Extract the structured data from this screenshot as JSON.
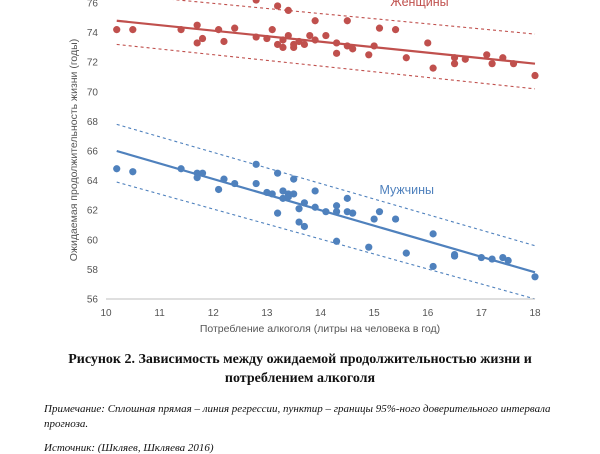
{
  "chart_data": {
    "type": "scatter",
    "title": "",
    "xlabel": "Потребление алкоголя (литры на человека в год)",
    "ylabel": "Ожидаемая продолжительность жизни (годы)",
    "xlim": [
      10,
      18
    ],
    "ylim": [
      56,
      76
    ],
    "xticks": [
      "10",
      "11",
      "12",
      "13",
      "14",
      "15",
      "16",
      "17",
      "18"
    ],
    "yticks": [
      "56",
      "58",
      "60",
      "62",
      "64",
      "66",
      "68",
      "70",
      "72",
      "74",
      "76"
    ],
    "grid": false,
    "series": [
      {
        "name": "Женщины",
        "color": "#c0504d",
        "points": [
          [
            10.2,
            74.2
          ],
          [
            10.5,
            74.2
          ],
          [
            11.4,
            74.2
          ],
          [
            11.7,
            74.5
          ],
          [
            11.7,
            73.3
          ],
          [
            11.8,
            73.6
          ],
          [
            12.1,
            74.2
          ],
          [
            12.2,
            73.4
          ],
          [
            12.4,
            74.3
          ],
          [
            12.8,
            73.7
          ],
          [
            12.8,
            76.2
          ],
          [
            13.0,
            73.6
          ],
          [
            13.1,
            74.2
          ],
          [
            13.2,
            75.8
          ],
          [
            13.2,
            73.2
          ],
          [
            13.3,
            73.5
          ],
          [
            13.3,
            73.0
          ],
          [
            13.4,
            75.5
          ],
          [
            13.4,
            73.8
          ],
          [
            13.5,
            73.2
          ],
          [
            13.5,
            73.0
          ],
          [
            13.6,
            73.4
          ],
          [
            13.7,
            73.2
          ],
          [
            13.8,
            73.8
          ],
          [
            13.9,
            74.8
          ],
          [
            13.9,
            73.5
          ],
          [
            14.1,
            73.8
          ],
          [
            14.3,
            73.3
          ],
          [
            14.3,
            72.6
          ],
          [
            14.5,
            74.8
          ],
          [
            14.5,
            73.1
          ],
          [
            14.6,
            72.9
          ],
          [
            14.9,
            72.5
          ],
          [
            15.0,
            73.1
          ],
          [
            15.1,
            74.3
          ],
          [
            15.4,
            74.2
          ],
          [
            15.6,
            72.3
          ],
          [
            16.0,
            73.3
          ],
          [
            16.1,
            71.6
          ],
          [
            16.5,
            72.3
          ],
          [
            16.5,
            71.9
          ],
          [
            16.7,
            72.2
          ],
          [
            17.1,
            72.5
          ],
          [
            17.2,
            71.9
          ],
          [
            17.4,
            72.3
          ],
          [
            17.6,
            71.9
          ],
          [
            18.0,
            71.1
          ]
        ],
        "fit": [
          [
            10.2,
            74.8
          ],
          [
            18.0,
            71.9
          ]
        ],
        "band_upper": [
          [
            10.2,
            76.6
          ],
          [
            18.0,
            73.9
          ]
        ],
        "band_lower": [
          [
            10.2,
            73.2
          ],
          [
            18.0,
            70.2
          ]
        ],
        "label_pos": [
          15.3,
          75.8
        ]
      },
      {
        "name": "Мужчины",
        "color": "#4f81bd",
        "points": [
          [
            10.2,
            64.8
          ],
          [
            10.5,
            64.6
          ],
          [
            11.4,
            64.8
          ],
          [
            11.7,
            64.5
          ],
          [
            11.7,
            64.2
          ],
          [
            11.8,
            64.5
          ],
          [
            12.1,
            63.4
          ],
          [
            12.2,
            64.1
          ],
          [
            12.4,
            63.8
          ],
          [
            12.8,
            65.1
          ],
          [
            12.8,
            63.8
          ],
          [
            13.0,
            63.2
          ],
          [
            13.1,
            63.1
          ],
          [
            13.2,
            64.5
          ],
          [
            13.2,
            61.8
          ],
          [
            13.3,
            63.3
          ],
          [
            13.3,
            62.8
          ],
          [
            13.4,
            63.1
          ],
          [
            13.4,
            62.9
          ],
          [
            13.5,
            64.1
          ],
          [
            13.5,
            63.1
          ],
          [
            13.6,
            62.1
          ],
          [
            13.6,
            61.2
          ],
          [
            13.7,
            60.9
          ],
          [
            13.7,
            62.5
          ],
          [
            13.9,
            63.3
          ],
          [
            13.9,
            62.2
          ],
          [
            14.1,
            61.9
          ],
          [
            14.3,
            62.3
          ],
          [
            14.3,
            61.9
          ],
          [
            14.3,
            59.9
          ],
          [
            14.5,
            62.8
          ],
          [
            14.5,
            61.9
          ],
          [
            14.6,
            61.8
          ],
          [
            14.9,
            59.5
          ],
          [
            15.0,
            61.4
          ],
          [
            15.1,
            61.9
          ],
          [
            15.4,
            61.4
          ],
          [
            15.6,
            59.1
          ],
          [
            16.1,
            60.4
          ],
          [
            16.1,
            58.2
          ],
          [
            16.5,
            58.9
          ],
          [
            16.5,
            59.0
          ],
          [
            17.0,
            58.8
          ],
          [
            17.2,
            58.7
          ],
          [
            17.4,
            58.8
          ],
          [
            17.5,
            58.6
          ],
          [
            18.0,
            57.5
          ]
        ],
        "fit": [
          [
            10.2,
            66.0
          ],
          [
            18.0,
            57.8
          ]
        ],
        "band_upper": [
          [
            10.2,
            67.8
          ],
          [
            18.0,
            59.6
          ]
        ],
        "band_lower": [
          [
            10.2,
            63.9
          ],
          [
            18.0,
            56.0
          ]
        ],
        "label_pos": [
          15.1,
          63.1
        ]
      }
    ]
  },
  "caption": {
    "line1": "Рисунок 2. Зависимость между ожидаемой продолжительностью жизни и",
    "line2": "потреблением алкоголя"
  },
  "note": {
    "text": "Примечание: Сплошная прямая – линия регрессии, пунктир – границы 95%-ного доверительного интервала прогноза."
  },
  "source": {
    "text": "Источник: (Шкляев, Шкляева 2016)"
  }
}
